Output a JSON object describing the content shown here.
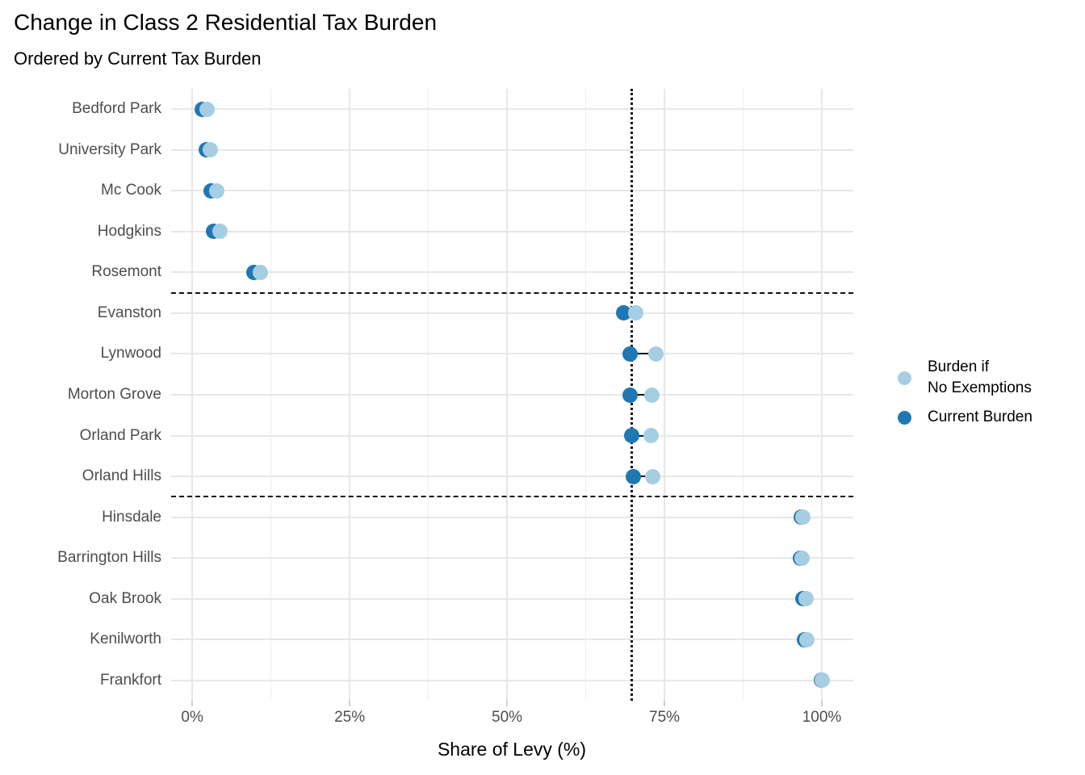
{
  "chart_data": {
    "type": "scatter",
    "title": "Change in Class 2 Residential Tax Burden",
    "subtitle": "Ordered by Current Tax Burden",
    "xlabel": "Share of Levy (%)",
    "categories": [
      "Bedford Park",
      "University Park",
      "Mc Cook",
      "Hodgkins",
      "Rosemont",
      "Evanston",
      "Lynwood",
      "Morton Grove",
      "Orland Park",
      "Orland Hills",
      "Hinsdale",
      "Barrington Hills",
      "Oak Brook",
      "Kenilworth",
      "Frankfort"
    ],
    "series": [
      {
        "name": "Burden if No Exemptions",
        "legend_label": "Burden if\nNo Exemptions",
        "color": "#A6CEE3",
        "values": [
          2.3,
          2.9,
          3.9,
          4.4,
          10.8,
          70.5,
          73.7,
          73.0,
          72.9,
          73.1,
          97.0,
          96.9,
          97.5,
          97.6,
          100.0
        ]
      },
      {
        "name": "Current Burden",
        "legend_label": "Current Burden",
        "color": "#1F78B4",
        "values": [
          1.6,
          2.2,
          3.0,
          3.4,
          9.8,
          68.5,
          69.5,
          69.5,
          69.8,
          70.0,
          96.7,
          96.6,
          97.0,
          97.2,
          99.9
        ]
      }
    ],
    "x_ticks": [
      {
        "value": 0,
        "label": "0%"
      },
      {
        "value": 25,
        "label": "25%"
      },
      {
        "value": 50,
        "label": "50%"
      },
      {
        "value": 75,
        "label": "75%"
      },
      {
        "value": 100,
        "label": "100%"
      }
    ],
    "x_minor_ticks": [
      12.5,
      37.5,
      62.5,
      87.5
    ],
    "xlim": [
      -3.35,
      105.0
    ],
    "grid": true,
    "legend_position": "right",
    "reference_lines": {
      "vertical_dotted_x": 69.8,
      "horizontal_dashed_after_categories": [
        "Rosemont",
        "Orland Hills"
      ]
    }
  },
  "colors": {
    "no_exemptions": "#A6CEE3",
    "current": "#1F78B4",
    "grid_major": "#e7e7e7",
    "grid_minor": "#efefef",
    "reference": "#111111",
    "axis_text": "#4d4d4d"
  }
}
